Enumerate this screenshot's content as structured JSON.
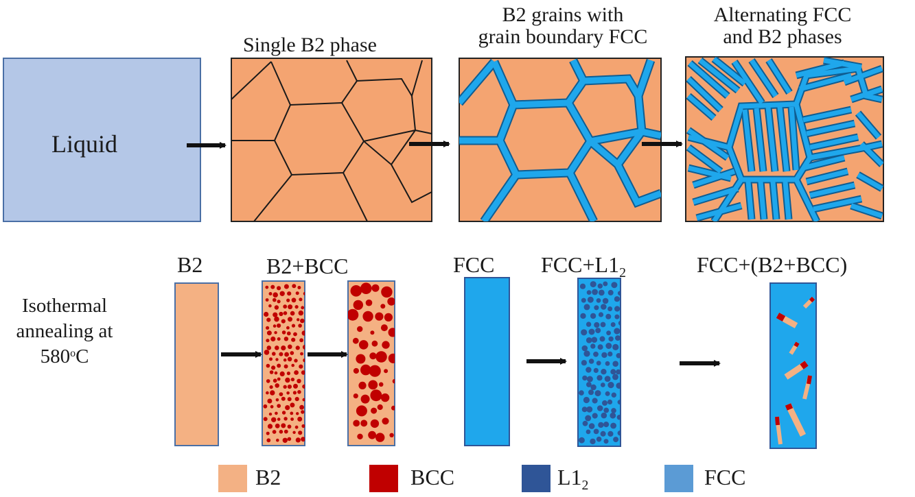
{
  "top_row": {
    "liquid_label": "Liquid",
    "stage1_caption": "Single B2 phase",
    "stage2_caption_line1": "B2 grains with",
    "stage2_caption_line2": "grain boundary FCC",
    "stage3_caption_line1": "Alternating FCC",
    "stage3_caption_line2": "and B2 phases"
  },
  "bottom_row": {
    "side_label_line1": "Isothermal",
    "side_label_line2": "annealing at",
    "temperature_value": "580",
    "temperature_sup": "o",
    "temperature_unit": "C",
    "b2_label": "B2",
    "b2_bcc_label": "B2+BCC",
    "fcc_label": "FCC",
    "fcc_l12_label": "FCC+L1",
    "fcc_l12_sub": "2",
    "fcc_b2bcc_label": "FCC+(B2+BCC)"
  },
  "legend": {
    "items": [
      {
        "label": "B2",
        "sub": "",
        "color": "#f3b184"
      },
      {
        "label": "BCC",
        "sub": "",
        "color": "#c00000"
      },
      {
        "label": "L1",
        "sub": "2",
        "color": "#2f5597"
      },
      {
        "label": "FCC",
        "sub": "",
        "color": "#5b9bd5"
      }
    ]
  },
  "colors": {
    "liquid": "#b4c7e7",
    "b2": "#f4a471",
    "b2_light": "#f7b98f",
    "fcc": "#1fa7ec",
    "bcc": "#c00000",
    "l12": "#2f5597",
    "grain_line": "#1a1a1a"
  }
}
